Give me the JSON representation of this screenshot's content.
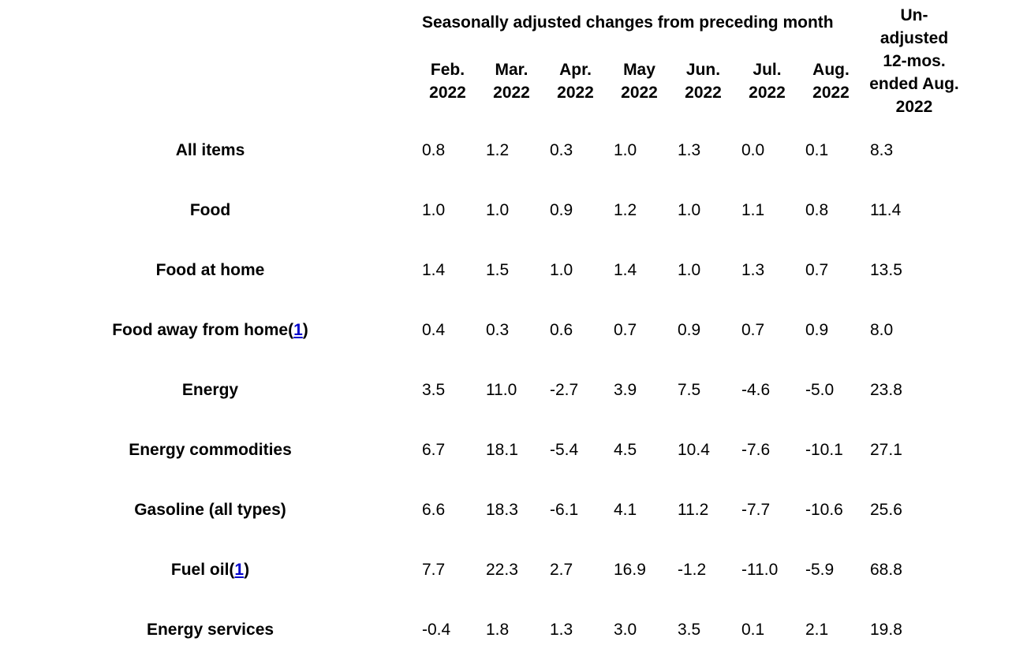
{
  "table": {
    "group_header": "Seasonally adjusted changes from preceding month",
    "columns": [
      "Feb. 2022",
      "Mar. 2022",
      "Apr. 2022",
      "May 2022",
      "Jun. 2022",
      "Jul. 2022",
      "Aug. 2022"
    ],
    "last_column": "Un-adjusted 12-mos. ended Aug. 2022",
    "rows": [
      {
        "label": "All items",
        "values": [
          "0.8",
          "1.2",
          "0.3",
          "1.0",
          "1.3",
          "0.0",
          "0.1",
          "8.3"
        ]
      },
      {
        "label": "Food",
        "values": [
          "1.0",
          "1.0",
          "0.9",
          "1.2",
          "1.0",
          "1.1",
          "0.8",
          "11.4"
        ]
      },
      {
        "label": "Food at home",
        "values": [
          "1.4",
          "1.5",
          "1.0",
          "1.4",
          "1.0",
          "1.3",
          "0.7",
          "13.5"
        ]
      },
      {
        "label": "Food away from home",
        "note": {
          "open": "(",
          "ref": "1",
          "close": ")"
        },
        "values": [
          "0.4",
          "0.3",
          "0.6",
          "0.7",
          "0.9",
          "0.7",
          "0.9",
          "8.0"
        ]
      },
      {
        "label": "Energy",
        "values": [
          "3.5",
          "11.0",
          "-2.7",
          "3.9",
          "7.5",
          "-4.6",
          "-5.0",
          "23.8"
        ]
      },
      {
        "label": "Energy commodities",
        "values": [
          "6.7",
          "18.1",
          "-5.4",
          "4.5",
          "10.4",
          "-7.6",
          "-10.1",
          "27.1"
        ]
      },
      {
        "label": "Gasoline (all types)",
        "values": [
          "6.6",
          "18.3",
          "-6.1",
          "4.1",
          "11.2",
          "-7.7",
          "-10.6",
          "25.6"
        ]
      },
      {
        "label": "Fuel oil",
        "note": {
          "open": "(",
          "ref": "1",
          "close": ")"
        },
        "values": [
          "7.7",
          "22.3",
          "2.7",
          "16.9",
          "-1.2",
          "-11.0",
          "-5.9",
          "68.8"
        ]
      },
      {
        "label": "Energy services",
        "values": [
          "-0.4",
          "1.8",
          "1.3",
          "3.0",
          "3.5",
          "0.1",
          "2.1",
          "19.8"
        ]
      }
    ]
  }
}
